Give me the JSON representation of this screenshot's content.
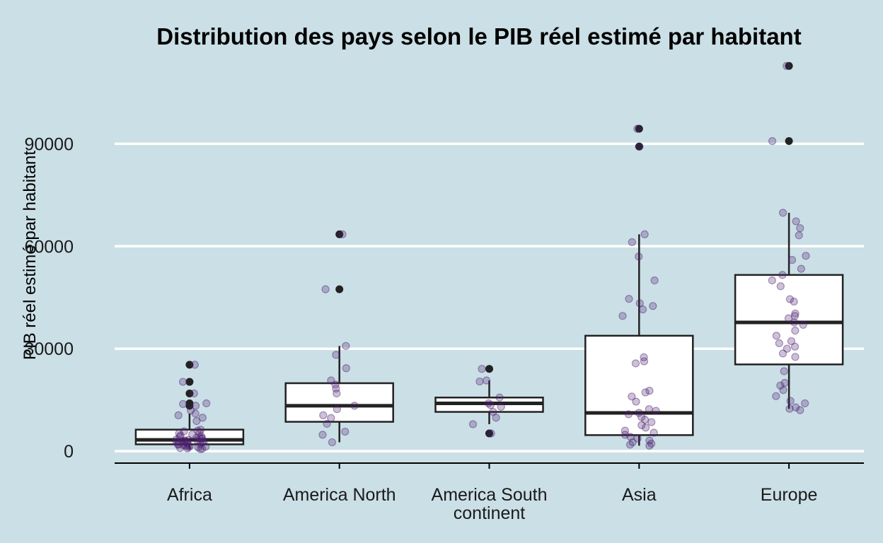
{
  "chart_data": {
    "type": "boxplot",
    "title": "Distribution des pays selon le PIB réel estimé par habitant",
    "xlabel": "",
    "ylabel": "PIB réel estimé par habitant",
    "ylim": [
      -3500,
      117000
    ],
    "yticks": [
      0,
      30000,
      60000,
      90000
    ],
    "grid": "horizontal major",
    "legend": "none",
    "colors": {
      "background": "#cbdfe6",
      "grid": "#ffffff",
      "box_fill": "#ffffff",
      "box_line": "#222222",
      "jitter_point": "#4b1f6f",
      "outlier": "#222222"
    },
    "categories": [
      {
        "label": "Africa",
        "label_lines": [
          "Africa"
        ],
        "box": {
          "q1": 2000,
          "median": 3300,
          "q3": 6300,
          "whisker_low": 600,
          "whisker_high": 11000
        },
        "outliers": [
          25300,
          20300,
          16900,
          14000,
          13300
        ],
        "points": [
          25300,
          20300,
          16900,
          14000,
          13300,
          11000,
          10500,
          9800,
          8800,
          6300,
          6000,
          5800,
          5500,
          5200,
          4900,
          4600,
          4200,
          4000,
          3800,
          3600,
          3400,
          3300,
          3200,
          3100,
          3000,
          2900,
          2800,
          2600,
          2400,
          2200,
          2100,
          2000,
          1900,
          1800,
          1600,
          1400,
          1300,
          1200,
          1100,
          900,
          800,
          700,
          600,
          13800,
          11900,
          4300,
          3900,
          2700
        ]
      },
      {
        "label": "America North",
        "label_lines": [
          "America North"
        ],
        "box": {
          "q1": 8600,
          "median": 13300,
          "q3": 19900,
          "whisker_low": 2600,
          "whisker_high": 30800
        },
        "outliers": [
          63500,
          47400
        ],
        "points": [
          63500,
          47400,
          30800,
          28200,
          24300,
          20700,
          19500,
          18300,
          16900,
          13300,
          12300,
          10500,
          9700,
          8000,
          5700,
          4800,
          2600
        ]
      },
      {
        "label": "America South continent",
        "label_lines": [
          "America South",
          "continent"
        ],
        "box": {
          "q1": 11500,
          "median": 14000,
          "q3": 15700,
          "whisker_low": 7900,
          "whisker_high": 20700
        },
        "outliers": [
          24100,
          5200
        ],
        "points": [
          24100,
          20700,
          20400,
          15700,
          14000,
          13500,
          13000,
          11500,
          9800,
          7900,
          5200
        ]
      },
      {
        "label": "Asia",
        "label_lines": [
          "Asia"
        ],
        "box": {
          "q1": 4700,
          "median": 11200,
          "q3": 33800,
          "whisker_low": 1600,
          "whisker_high": 63500
        },
        "outliers": [
          94400,
          89200
        ],
        "points": [
          94400,
          89200,
          63500,
          61200,
          57000,
          50000,
          44600,
          43300,
          42500,
          41500,
          39600,
          27500,
          26300,
          25700,
          17700,
          17200,
          16000,
          12300,
          11800,
          11200,
          10800,
          10000,
          9200,
          8500,
          7600,
          6900,
          6000,
          5400,
          4800,
          4200,
          3700,
          3100,
          2600,
          2200,
          1900,
          1600,
          14500
        ]
      },
      {
        "label": "Europe",
        "label_lines": [
          "Europe"
        ],
        "box": {
          "q1": 25400,
          "median": 37700,
          "q3": 51600,
          "whisker_low": 12400,
          "whisker_high": 69800
        },
        "outliers": [
          112800,
          90800
        ],
        "points": [
          112800,
          90800,
          69800,
          67300,
          65300,
          63200,
          57200,
          56000,
          53400,
          51600,
          50000,
          48300,
          44500,
          43800,
          40300,
          39600,
          38900,
          37700,
          37000,
          35300,
          33800,
          32200,
          31600,
          30600,
          30000,
          28600,
          27600,
          23400,
          20000,
          19200,
          17900,
          16100,
          14700,
          14000,
          12800,
          12400,
          12000
        ]
      }
    ]
  }
}
